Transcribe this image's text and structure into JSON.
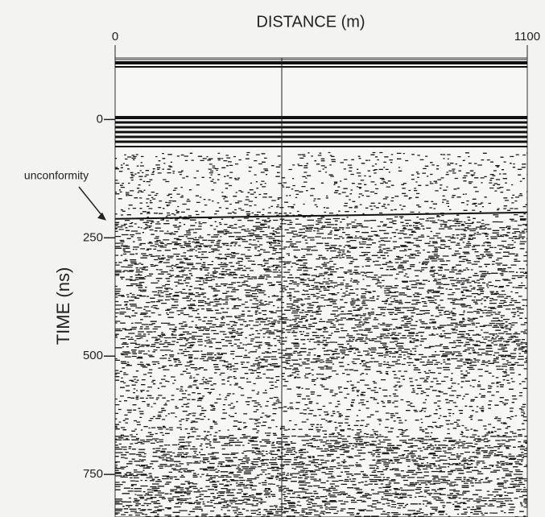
{
  "chart_data": {
    "type": "radargram",
    "x_label": "DISTANCE (m)",
    "y_label": "TIME (ns)",
    "xlim": [
      0,
      1100
    ],
    "xticks": [
      0,
      1100
    ],
    "ylim": [
      -130,
      840
    ],
    "yticks": [
      0,
      250,
      500,
      750
    ],
    "annotations": [
      {
        "text": "unconformity",
        "time": 210
      }
    ]
  }
}
